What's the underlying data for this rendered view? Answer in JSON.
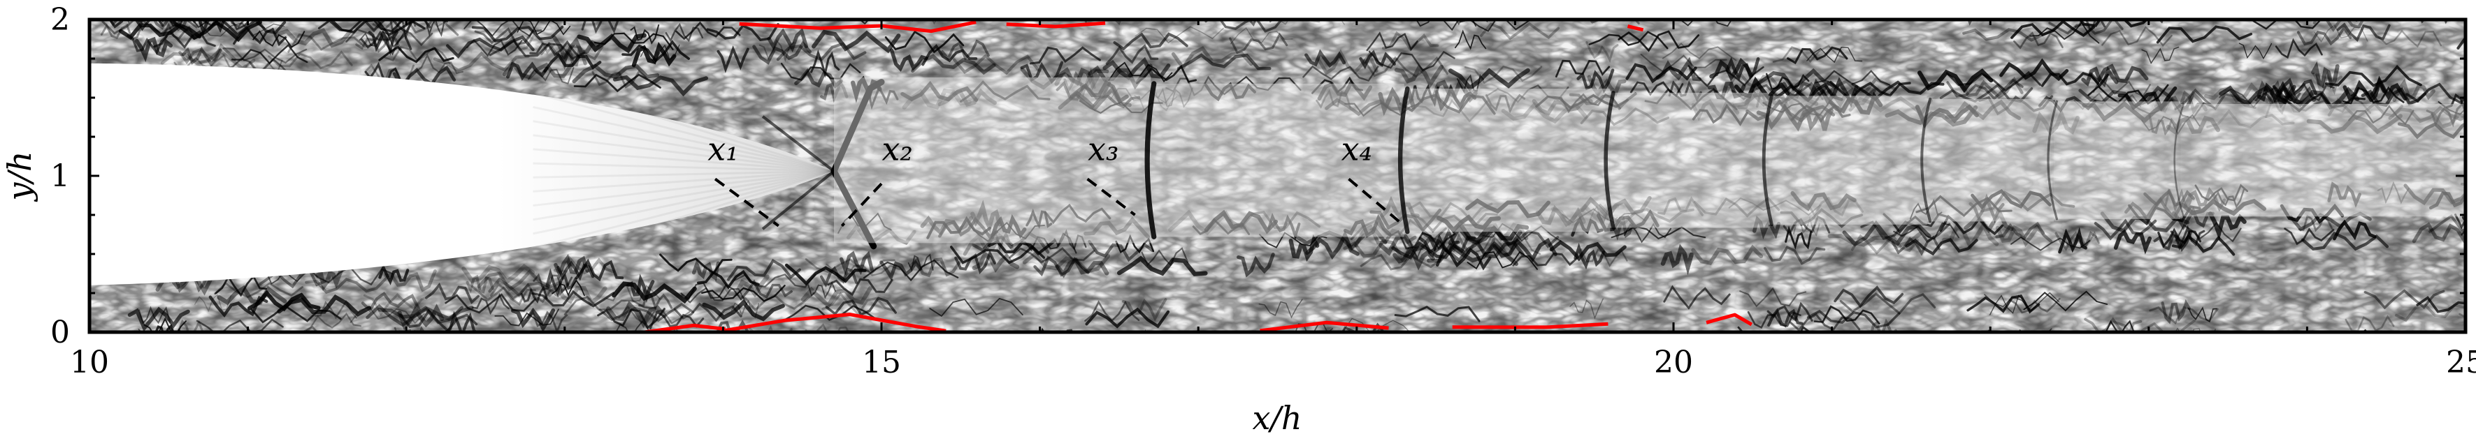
{
  "chart_data": {
    "type": "heatmap",
    "title": "",
    "xlabel": "x/h",
    "ylabel": "y/h",
    "xlim": [
      10,
      25
    ],
    "ylim": [
      0,
      2
    ],
    "xticks": [
      10,
      15,
      20,
      25
    ],
    "yticks": [
      0,
      1,
      2
    ],
    "colormap": "greyscale numerical schlieren (white to black)",
    "contour_color": "#ff0000",
    "grid": false,
    "shock_cells_x": [
      14.7,
      16.7,
      18.3,
      19.6,
      20.6,
      21.6,
      22.4,
      23.2
    ],
    "jet_core_end_x": 14.7,
    "annotations": [
      {
        "label": "x₁",
        "text_x": 14.0,
        "text_y": 1.1,
        "line": {
          "x1": 13.95,
          "y1": 0.98,
          "x2": 14.35,
          "y2": 0.68
        }
      },
      {
        "label": "x₂",
        "text_x": 15.1,
        "text_y": 1.1,
        "line": {
          "x1": 15.0,
          "y1": 0.95,
          "x2": 14.75,
          "y2": 0.68
        }
      },
      {
        "label": "x₃",
        "text_x": 16.4,
        "text_y": 1.1,
        "line": {
          "x1": 16.3,
          "y1": 0.98,
          "x2": 16.6,
          "y2": 0.75
        }
      },
      {
        "label": "x₄",
        "text_x": 18.0,
        "text_y": 1.1,
        "line": {
          "x1": 17.95,
          "y1": 0.98,
          "x2": 18.3,
          "y2": 0.68
        }
      }
    ]
  }
}
